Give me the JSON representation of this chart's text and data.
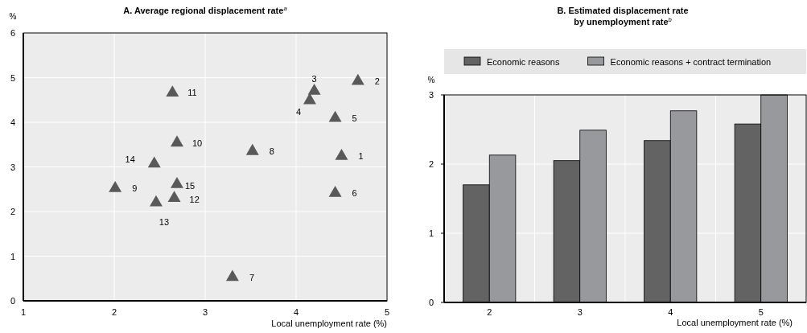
{
  "chart_data": [
    {
      "type": "scatter",
      "title": "A. Average regional displacement rate$^{a}$",
      "xlabel": "Local unemployment rate (%)",
      "ylabel": "%",
      "x": [
        4.5,
        4.68,
        4.2,
        4.15,
        4.43,
        4.43,
        3.3,
        3.52,
        2.01,
        2.69,
        2.64,
        2.66,
        2.46,
        2.44,
        2.69
      ],
      "series": [
        {
          "color": "#595959",
          "values": [
            3.24,
            4.92,
            4.7,
            4.49,
            4.09,
            2.41,
            0.53,
            3.35,
            2.52,
            3.54,
            4.66,
            2.3,
            2.2,
            3.07,
            2.61
          ]
        }
      ],
      "annotations": [
        {
          "text": "1",
          "x": 4.5,
          "y": 3.24
        },
        {
          "text": "2",
          "x": 4.68,
          "y": 4.92
        },
        {
          "text": "3",
          "x": 4.2,
          "y": 4.7
        },
        {
          "text": "4",
          "x": 4.15,
          "y": 4.49
        },
        {
          "text": "5",
          "x": 4.43,
          "y": 4.09
        },
        {
          "text": "6",
          "x": 4.43,
          "y": 2.41
        },
        {
          "text": "7",
          "x": 3.3,
          "y": 0.53
        },
        {
          "text": "8",
          "x": 3.52,
          "y": 3.35
        },
        {
          "text": "9",
          "x": 2.01,
          "y": 2.52
        },
        {
          "text": "10",
          "x": 2.69,
          "y": 3.54
        },
        {
          "text": "11",
          "x": 2.64,
          "y": 4.66
        },
        {
          "text": "12",
          "x": 2.66,
          "y": 2.3
        },
        {
          "text": "13",
          "x": 2.46,
          "y": 2.2
        },
        {
          "text": "14",
          "x": 2.44,
          "y": 3.07
        },
        {
          "text": "15",
          "x": 2.69,
          "y": 2.61
        }
      ],
      "xlim": [
        1,
        5
      ],
      "xticks": [
        1,
        2,
        3,
        4,
        5
      ],
      "ylim": [
        0,
        6
      ],
      "yticks": [
        0,
        1,
        2,
        3,
        4,
        5,
        6
      ],
      "grid": true,
      "marker": "triangle"
    },
    {
      "type": "bar",
      "title": "B. Estimated displacement rate\nby unemployment rate$^{b}$",
      "xlabel": "Local unemployment rate (%)",
      "ylabel": "%",
      "categories": [
        "2",
        "3",
        "4",
        "5"
      ],
      "series": [
        {
          "name": "Economic reasons",
          "color": "#636363",
          "values": [
            1.7,
            2.05,
            2.34,
            2.58
          ]
        },
        {
          "name": "Economic reasons + contract termination",
          "color": "#98999c",
          "values": [
            2.13,
            2.49,
            2.77,
            3.0
          ]
        }
      ],
      "ylim": [
        0,
        3
      ],
      "yticks": [
        0,
        1,
        2,
        3
      ],
      "grid": true,
      "legend": "top"
    }
  ]
}
